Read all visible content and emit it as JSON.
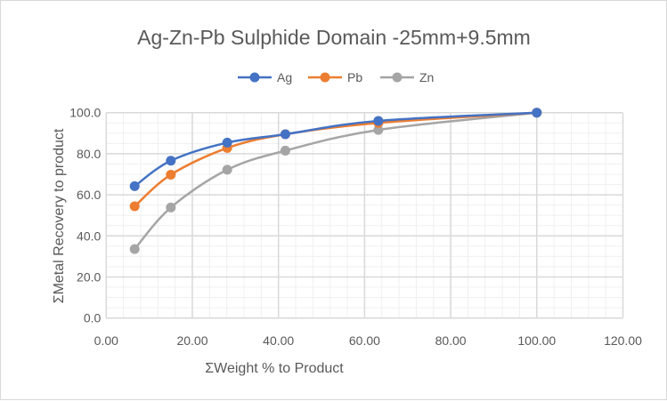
{
  "chart_data": {
    "type": "line",
    "title": "Ag-Zn-Pb Sulphide Domain -25mm+9.5mm",
    "xlabel": "ΣWeight % to Product",
    "ylabel": "ΣMetal Recovery to product",
    "xlim": [
      0,
      120
    ],
    "ylim": [
      0,
      100
    ],
    "x_ticks": [
      "0.00",
      "20.00",
      "40.00",
      "60.00",
      "80.00",
      "100.00",
      "120.00"
    ],
    "y_ticks": [
      "0.0",
      "20.0",
      "40.0",
      "60.0",
      "80.0",
      "100.0"
    ],
    "grid": true,
    "minor_grid": true,
    "smooth": true,
    "legend": "top",
    "x": [
      6.6,
      15.0,
      28.1,
      41.6,
      63.2,
      100.0
    ],
    "series": [
      {
        "name": "Ag",
        "color": "#4472C4",
        "values": [
          64.2,
          76.6,
          85.4,
          89.5,
          96.0,
          100.0
        ]
      },
      {
        "name": "Pb",
        "color": "#ED7D31",
        "values": [
          54.4,
          69.8,
          82.8,
          89.5,
          95.0,
          100.0
        ]
      },
      {
        "name": "Zn",
        "color": "#A5A5A5",
        "values": [
          33.6,
          53.8,
          72.2,
          81.5,
          91.6,
          100.0
        ]
      }
    ]
  }
}
